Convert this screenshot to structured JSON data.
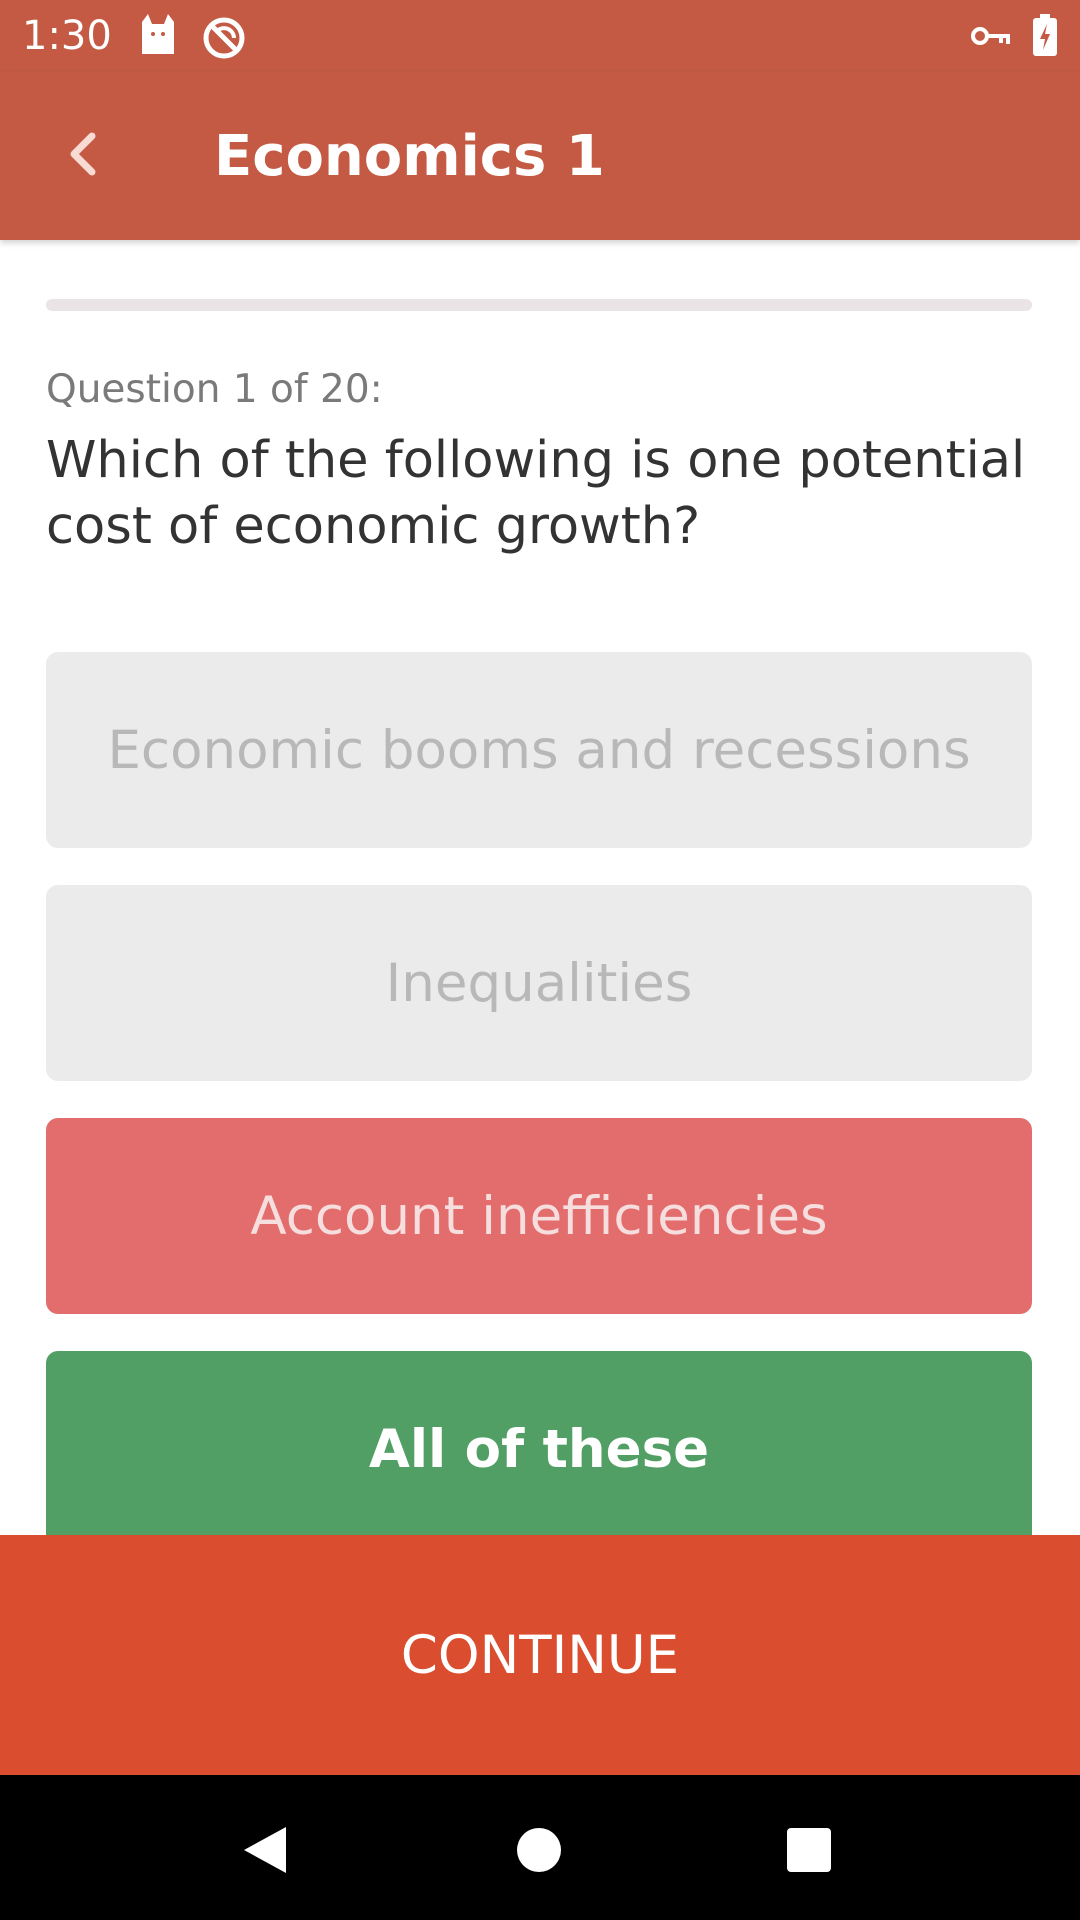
{
  "status_bar": {
    "time": "1:30",
    "icons": [
      "cat-icon",
      "nosync-icon",
      "key-icon",
      "battery-charging-icon"
    ]
  },
  "app_bar": {
    "title": "Economics 1",
    "back_icon": "chevron-left-icon"
  },
  "progress": {
    "fraction": 0
  },
  "question": {
    "counter": "Question 1 of 20:",
    "text": "Which of the following is one potential cost of economic growth?"
  },
  "options": [
    {
      "label": "Economic booms and recessions",
      "state": "disabled"
    },
    {
      "label": "Inequalities",
      "state": "disabled"
    },
    {
      "label": "Account inefficiencies",
      "state": "incorrect"
    },
    {
      "label": "All of these",
      "state": "correct"
    }
  ],
  "continue_label": "CONTINUE",
  "colors": {
    "header": "#c45a43",
    "continue": "#da4e2f",
    "correct": "#529f65",
    "incorrect": "#e36c6c",
    "disabled": "#ebebeb"
  },
  "nav_bar": {
    "icons": [
      "nav-back-icon",
      "nav-home-icon",
      "nav-recents-icon"
    ]
  }
}
